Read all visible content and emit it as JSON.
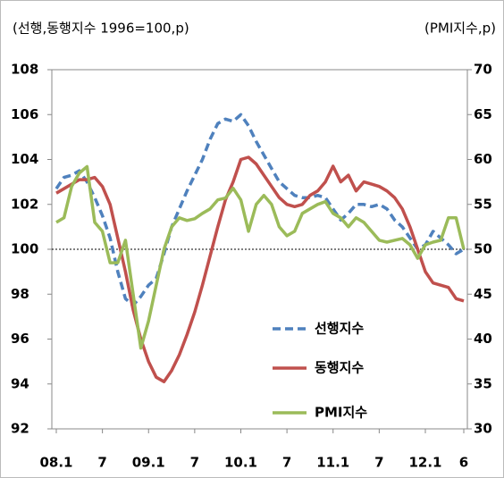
{
  "chart_data": {
    "type": "line",
    "y_title": "(선행,동행지수 1996=100,p)",
    "y2_title": "(PMI지수,p)",
    "categories": [
      "08.1",
      null,
      null,
      null,
      null,
      null,
      "7",
      null,
      null,
      null,
      null,
      null,
      "09.1",
      null,
      null,
      null,
      null,
      null,
      "7",
      null,
      null,
      null,
      null,
      null,
      "10.1",
      null,
      null,
      null,
      null,
      null,
      "7",
      null,
      null,
      null,
      null,
      null,
      "11.1",
      null,
      null,
      null,
      null,
      null,
      "7",
      null,
      null,
      null,
      null,
      null,
      "12.1",
      null,
      null,
      null,
      null,
      "6"
    ],
    "series": [
      {
        "name": "선행지수",
        "color": "#4f81bd",
        "dashed": true,
        "values": [
          102.7,
          103.2,
          103.3,
          103.5,
          103,
          102.3,
          101.5,
          100.5,
          99,
          97.8,
          97.5,
          97.9,
          98.4,
          98.7,
          99.8,
          101,
          101.8,
          102.6,
          103.3,
          104,
          104.9,
          105.6,
          105.8,
          105.7,
          106,
          105.5,
          104.8,
          104.2,
          103.6,
          103,
          102.7,
          102.4,
          102.3,
          102.3,
          102.4,
          102.3,
          101.8,
          101.3,
          101.6,
          102,
          102,
          101.9,
          102,
          101.8,
          101.3,
          101,
          100.5,
          100,
          100.2,
          100.8,
          100.5,
          100.2,
          99.8,
          100
        ]
      },
      {
        "name": "동행지수",
        "color": "#c0504d",
        "values": [
          102.5,
          102.7,
          102.9,
          103.1,
          103.1,
          103.2,
          102.8,
          102,
          100.5,
          99,
          97.3,
          96,
          95,
          94.3,
          94.1,
          94.6,
          95.3,
          96.2,
          97.2,
          98.4,
          99.7,
          101,
          102.2,
          103,
          104,
          104.1,
          103.8,
          103.3,
          102.8,
          102.3,
          102,
          101.9,
          102,
          102.4,
          102.6,
          103,
          103.7,
          103,
          103.3,
          102.6,
          103,
          102.9,
          102.8,
          102.6,
          102.3,
          101.8,
          101,
          100,
          99,
          98.5,
          98.4,
          98.3,
          97.8,
          97.7
        ]
      },
      {
        "name": "PMI지수",
        "color": "#9bbb59",
        "axis": "y2",
        "values": [
          53,
          53.5,
          57,
          58.5,
          59.2,
          53,
          52,
          48.5,
          48.5,
          51,
          45,
          39,
          42,
          46,
          50,
          52.5,
          53.5,
          53.2,
          53.4,
          54,
          54.5,
          55.5,
          55.7,
          56.8,
          55.5,
          52,
          55,
          56,
          55,
          52.5,
          51.5,
          52,
          54,
          54.5,
          55,
          55.3,
          54,
          53.5,
          52.5,
          53.5,
          53,
          52,
          51,
          50.8,
          51,
          51.2,
          50.5,
          49,
          50.5,
          50.8,
          51,
          53.5,
          53.5,
          50
        ]
      }
    ],
    "ylim": [
      92,
      108
    ],
    "yticks": [
      92,
      94,
      96,
      98,
      100,
      102,
      104,
      106,
      108
    ],
    "y2lim": [
      30,
      70
    ],
    "y2ticks": [
      30,
      35,
      40,
      45,
      50,
      55,
      60,
      65,
      70
    ],
    "reference_line": 100
  }
}
